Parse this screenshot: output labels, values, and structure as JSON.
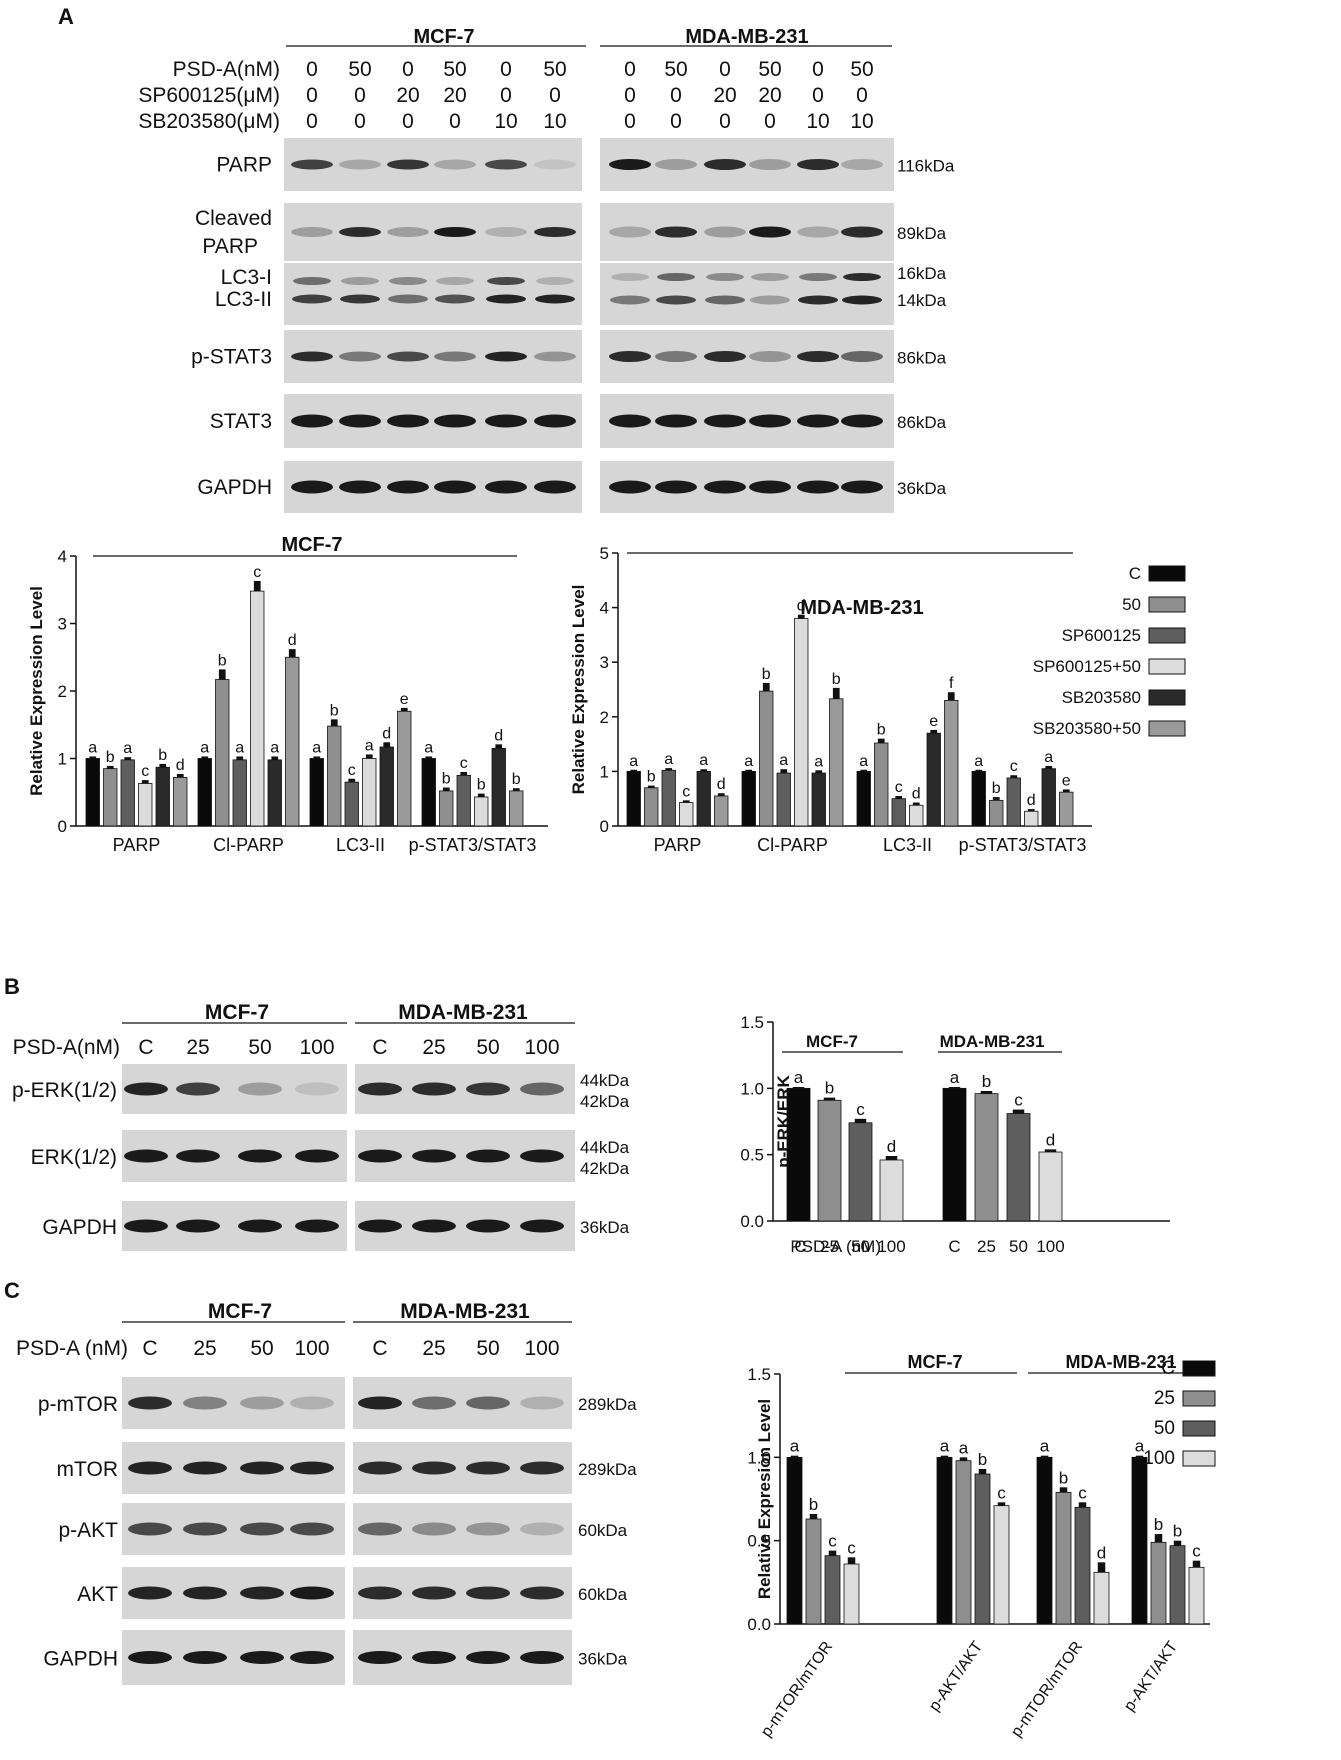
{
  "panels": {
    "A": "A",
    "B": "B",
    "C": "C"
  },
  "colors": {
    "black": "#0a0a0a",
    "gray_mid": "#8e8e8e",
    "gray_dark": "#5e5e5e",
    "gray_light": "#dcdcdc",
    "black2": "#2a2a2a",
    "gray_mid2": "#9a9a9a",
    "blot_bg": "#d6d6d6",
    "band": "#1a1a1a"
  },
  "panelA": {
    "cells": [
      "MCF-7",
      "MDA-MB-231"
    ],
    "treat_rows": [
      {
        "label": "PSD-A(nM)",
        "values": [
          "0",
          "50",
          "0",
          "50",
          "0",
          "50"
        ]
      },
      {
        "label": "SP600125(μM)",
        "values": [
          "0",
          "0",
          "20",
          "20",
          "0",
          "0"
        ]
      },
      {
        "label": "SB203580(μM)",
        "values": [
          "0",
          "0",
          "0",
          "0",
          "10",
          "10"
        ]
      }
    ],
    "blots": [
      {
        "label": "PARP",
        "kda": [
          "116kDa"
        ]
      },
      {
        "label": "Cleaved PARP",
        "kda": [
          "89kDa"
        ]
      },
      {
        "label": "LC3-I LC3-II",
        "kda": [
          "16kDa",
          "14kDa"
        ]
      },
      {
        "label": "p-STAT3",
        "kda": [
          "86kDa"
        ]
      },
      {
        "label": "STAT3",
        "kda": [
          "86kDa"
        ]
      },
      {
        "label": "GAPDH",
        "kda": [
          "36kDa"
        ]
      }
    ],
    "blot_label_lines": {
      "cleaved_1": "Cleaved",
      "cleaved_2": "PARP",
      "lc3_1": "LC3-I",
      "lc3_2": "LC3-II"
    }
  },
  "panelB": {
    "cells": [
      "MCF-7",
      "MDA-MB-231"
    ],
    "treat_label": "PSD-A(nM)",
    "lanes": [
      "C",
      "25",
      "50",
      "100"
    ],
    "blots": [
      {
        "label": "p-ERK(1/2)",
        "kda": [
          "44kDa",
          "42kDa"
        ]
      },
      {
        "label": "ERK(1/2)",
        "kda": [
          "44kDa",
          "42kDa"
        ]
      },
      {
        "label": "GAPDH",
        "kda": [
          "36kDa"
        ]
      }
    ]
  },
  "panelC": {
    "cells": [
      "MCF-7",
      "MDA-MB-231"
    ],
    "treat_label": "PSD-A (nM)",
    "lanes": [
      "C",
      "25",
      "50",
      "100"
    ],
    "blots": [
      {
        "label": "p-mTOR",
        "kda": [
          "289kDa"
        ]
      },
      {
        "label": "mTOR",
        "kda": [
          "289kDa"
        ]
      },
      {
        "label": "p-AKT",
        "kda": [
          "60kDa"
        ]
      },
      {
        "label": "AKT",
        "kda": [
          "60kDa"
        ]
      },
      {
        "label": "GAPDH",
        "kda": [
          "36kDa"
        ]
      }
    ]
  },
  "chart_data": [
    {
      "id": "A-MCF7",
      "type": "bar",
      "title": "MCF-7",
      "ylabel": "Relative Expression Level",
      "ylim": [
        0,
        4
      ],
      "yticks": [
        "0",
        "1",
        "2",
        "3",
        "4"
      ],
      "categories": [
        "PARP",
        "Cl-PARP",
        "LC3-II",
        "p-STAT3/STAT3"
      ],
      "series": [
        {
          "name": "C",
          "values": [
            1.0,
            1.0,
            1.0,
            1.0
          ],
          "err": [
            0.03,
            0.03,
            0.03,
            0.03
          ],
          "letters": [
            "a",
            "a",
            "a",
            "a"
          ]
        },
        {
          "name": "50",
          "values": [
            0.85,
            2.17,
            1.48,
            0.52
          ],
          "err": [
            0.04,
            0.15,
            0.1,
            0.05
          ],
          "letters": [
            "b",
            "b",
            "b",
            "b"
          ]
        },
        {
          "name": "SP600125",
          "values": [
            0.98,
            0.98,
            0.65,
            0.75
          ],
          "err": [
            0.04,
            0.05,
            0.05,
            0.05
          ],
          "letters": [
            "a",
            "a",
            "c",
            "c"
          ]
        },
        {
          "name": "SP600125+50",
          "values": [
            0.63,
            3.48,
            1.0,
            0.43
          ],
          "err": [
            0.05,
            0.15,
            0.06,
            0.05
          ],
          "letters": [
            "c",
            "c",
            "a",
            "b"
          ]
        },
        {
          "name": "SB203580",
          "values": [
            0.87,
            0.98,
            1.17,
            1.15
          ],
          "err": [
            0.05,
            0.05,
            0.07,
            0.06
          ],
          "letters": [
            "b",
            "a",
            "d",
            "d"
          ]
        },
        {
          "name": "SB203580+50",
          "values": [
            0.72,
            2.5,
            1.7,
            0.52
          ],
          "err": [
            0.05,
            0.12,
            0.05,
            0.04
          ],
          "letters": [
            "d",
            "d",
            "e",
            "b"
          ]
        }
      ]
    },
    {
      "id": "A-MDA",
      "type": "bar",
      "title": "MDA-MB-231",
      "ylabel": "Relative Expression Level",
      "ylim": [
        0,
        5
      ],
      "yticks": [
        "0",
        "1",
        "2",
        "3",
        "4",
        "5"
      ],
      "categories": [
        "PARP",
        "Cl-PARP",
        "LC3-II",
        "p-STAT3/STAT3"
      ],
      "legend": [
        "C",
        "50",
        "SP600125",
        "SP600125+50",
        "SB203580",
        "SB203580+50"
      ],
      "series": [
        {
          "name": "C",
          "values": [
            1.0,
            1.0,
            1.0,
            1.0
          ],
          "err": [
            0.03,
            0.03,
            0.03,
            0.03
          ],
          "letters": [
            "a",
            "a",
            "a",
            "a"
          ]
        },
        {
          "name": "50",
          "values": [
            0.7,
            2.47,
            1.52,
            0.47
          ],
          "err": [
            0.04,
            0.15,
            0.08,
            0.06
          ],
          "letters": [
            "b",
            "b",
            "b",
            "b"
          ]
        },
        {
          "name": "SP600125",
          "values": [
            1.02,
            0.97,
            0.5,
            0.88
          ],
          "err": [
            0.04,
            0.07,
            0.05,
            0.05
          ],
          "letters": [
            "a",
            "a",
            "c",
            "c"
          ]
        },
        {
          "name": "SP600125+50",
          "values": [
            0.43,
            3.8,
            0.38,
            0.27
          ],
          "err": [
            0.04,
            0.07,
            0.05,
            0.04
          ],
          "letters": [
            "c",
            "d",
            "d",
            "d"
          ]
        },
        {
          "name": "SB203580",
          "values": [
            1.0,
            0.97,
            1.7,
            1.05
          ],
          "err": [
            0.04,
            0.05,
            0.06,
            0.05
          ],
          "letters": [
            "a",
            "a",
            "e",
            "a"
          ]
        },
        {
          "name": "SB203580+50",
          "values": [
            0.55,
            2.33,
            2.3,
            0.62
          ],
          "err": [
            0.05,
            0.2,
            0.15,
            0.05
          ],
          "letters": [
            "d",
            "b",
            "f",
            "e"
          ]
        }
      ]
    },
    {
      "id": "B",
      "type": "bar",
      "title": "",
      "group_titles": [
        "MCF-7",
        "MDA-MB-231"
      ],
      "ylabel": "p-ERK/ERK",
      "ylim": [
        0,
        1.5
      ],
      "yticks": [
        "0.0",
        "0.5",
        "1.0",
        "1.5"
      ],
      "xprefix": "PSD-A (nM)",
      "xlabels": [
        "C",
        "25",
        "50",
        "100"
      ],
      "series": [
        {
          "name": "C",
          "values": [
            1.0,
            1.0
          ],
          "err": [
            0.01,
            0.01
          ],
          "letters": [
            "a",
            "a"
          ]
        },
        {
          "name": "25",
          "values": [
            0.91,
            0.96
          ],
          "err": [
            0.02,
            0.02
          ],
          "letters": [
            "b",
            "b"
          ]
        },
        {
          "name": "50",
          "values": [
            0.74,
            0.81
          ],
          "err": [
            0.03,
            0.03
          ],
          "letters": [
            "c",
            "c"
          ]
        },
        {
          "name": "100",
          "values": [
            0.46,
            0.52
          ],
          "err": [
            0.03,
            0.02
          ],
          "letters": [
            "d",
            "d"
          ]
        }
      ]
    },
    {
      "id": "C",
      "type": "bar",
      "title": "",
      "group_titles": [
        "MCF-7",
        "MDA-MB-231"
      ],
      "ylabel": "Relative Expresion Level",
      "ylim": [
        0,
        1.5
      ],
      "yticks": [
        "0.0",
        "0.5",
        "1.0",
        "1.5"
      ],
      "categories": [
        "p-mTOR/mTOR",
        "p-AKT/AKT",
        "p-mTOR/mTOR",
        "p-AKT/AKT"
      ],
      "legend": [
        "C",
        "25",
        "50",
        "100"
      ],
      "series": [
        {
          "name": "C",
          "values": [
            1.0,
            1.0,
            1.0,
            1.0
          ],
          "err": [
            0.01,
            0.01,
            0.01,
            0.01
          ],
          "letters": [
            "a",
            "a",
            "a",
            "a"
          ]
        },
        {
          "name": "25",
          "values": [
            0.63,
            0.98,
            0.79,
            0.49
          ],
          "err": [
            0.03,
            0.02,
            0.03,
            0.05
          ],
          "letters": [
            "b",
            "a",
            "b",
            "b"
          ]
        },
        {
          "name": "50",
          "values": [
            0.41,
            0.9,
            0.7,
            0.47
          ],
          "err": [
            0.03,
            0.03,
            0.03,
            0.03
          ],
          "letters": [
            "c",
            "b",
            "c",
            "b"
          ]
        },
        {
          "name": "100",
          "values": [
            0.36,
            0.71,
            0.31,
            0.34
          ],
          "err": [
            0.04,
            0.02,
            0.06,
            0.04
          ],
          "letters": [
            "c",
            "c",
            "d",
            "c"
          ]
        }
      ]
    }
  ]
}
